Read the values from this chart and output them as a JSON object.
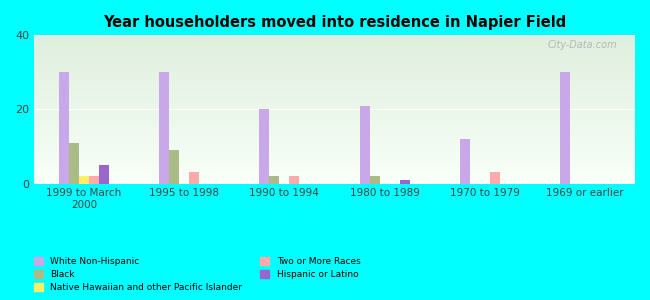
{
  "title": "Year householders moved into residence in Napier Field",
  "categories": [
    "1999 to March\n2000",
    "1995 to 1998",
    "1990 to 1994",
    "1980 to 1989",
    "1970 to 1979",
    "1969 or earlier"
  ],
  "series": {
    "White Non-Hispanic": [
      30,
      30,
      20,
      21,
      12,
      30
    ],
    "Black": [
      11,
      9,
      2,
      2,
      0,
      0
    ],
    "Native Hawaiian and other Pacific Islander": [
      2,
      0,
      0,
      0,
      0,
      0
    ],
    "Two or More Races": [
      2,
      3,
      2,
      0,
      3,
      0
    ],
    "Hispanic or Latino": [
      5,
      0,
      0,
      1,
      0,
      0
    ]
  },
  "colors": {
    "White Non-Hispanic": "#c8a8e8",
    "Black": "#aabb88",
    "Native Hawaiian and other Pacific Islander": "#ffee66",
    "Two or More Races": "#ffaaaa",
    "Hispanic or Latino": "#9966cc"
  },
  "ylim": [
    0,
    40
  ],
  "yticks": [
    0,
    20,
    40
  ],
  "background_color": "#00ffff",
  "plot_bg_top": "#deeedd",
  "plot_bg_bottom": "#f8fff8",
  "watermark": "City-Data.com",
  "bar_width": 0.1,
  "legend_col1": [
    "White Non-Hispanic",
    "Native Hawaiian and other Pacific Islander",
    "Hispanic or Latino"
  ],
  "legend_col2": [
    "Black",
    "Two or More Races"
  ]
}
